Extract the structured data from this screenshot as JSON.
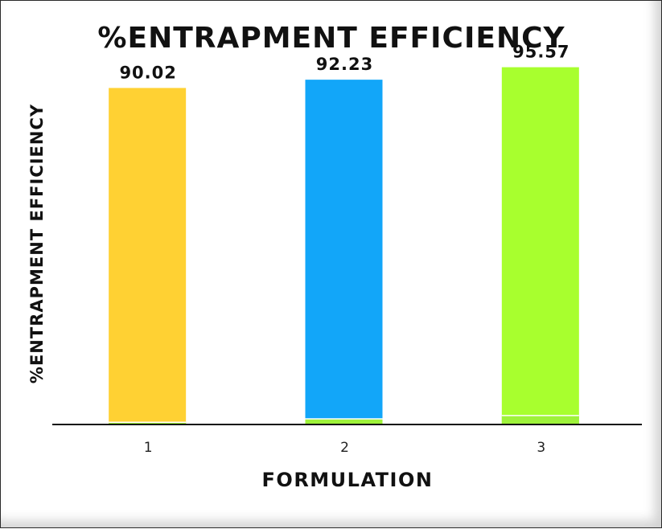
{
  "chart_data": {
    "type": "bar",
    "title": "%ENTRAPMENT EFFICIENCY",
    "xlabel": "FORMULATION",
    "ylabel": "%ENTRAPMENT EFFICIENCY",
    "categories": [
      "1",
      "2",
      "3"
    ],
    "values": [
      90.02,
      92.23,
      95.57
    ],
    "value_labels": [
      "90.02",
      "92.23",
      "95.57"
    ],
    "base_values": [
      0.6,
      1.5,
      2.4
    ],
    "ylim": [
      0,
      100
    ],
    "grid": false,
    "legend": "none",
    "colors": [
      "#FFD133",
      "#12A6F9",
      "#A8FF2E"
    ],
    "base_color": "#9EF23A"
  }
}
